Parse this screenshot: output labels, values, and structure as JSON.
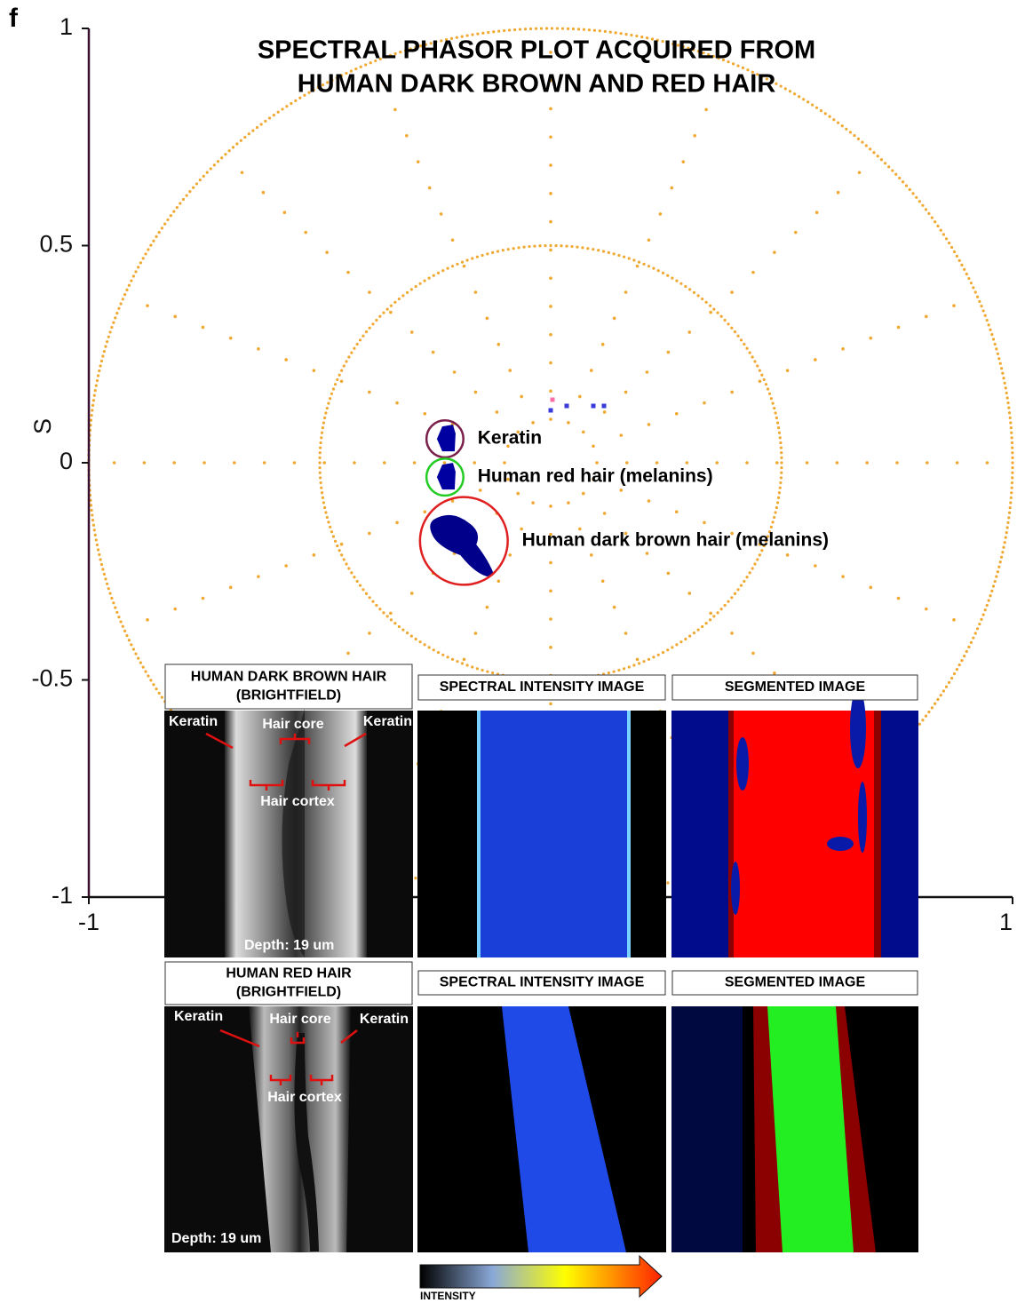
{
  "panel_label": "f",
  "chart_data": {
    "type": "phasor",
    "title": [
      "SPECTRAL PHASOR PLOT ACQUIRED FROM",
      "HUMAN DARK BROWN AND RED HAIR"
    ],
    "ylabel": "S",
    "xlim": [
      -1,
      1
    ],
    "ylim": [
      -1,
      1
    ],
    "xticks": [
      -1,
      1
    ],
    "yticks": [
      -1,
      -0.5,
      0,
      0.5,
      1
    ],
    "ref_circles": [
      0.5,
      1
    ],
    "spokes": 16,
    "grid_color": "#f0a830",
    "clusters": [
      {
        "label": "Keratin",
        "color": "#7a1f4a",
        "x": -0.229,
        "y": 0.055,
        "r": 0.04
      },
      {
        "label": "Human red hair (melanins)",
        "color": "#22cc22",
        "x": -0.229,
        "y": -0.033,
        "r": 0.04
      },
      {
        "label": "Human dark brown hair (melanins)",
        "color": "#e02020",
        "x": -0.188,
        "y": -0.18,
        "r": 0.095
      }
    ]
  },
  "images": {
    "rows": [
      {
        "headers": [
          [
            "HUMAN DARK BROWN HAIR",
            "(BRIGHTFIELD)"
          ],
          [
            "SPECTRAL INTENSITY IMAGE"
          ],
          [
            "SEGMENTED IMAGE"
          ]
        ],
        "annotations": [
          "Keratin",
          "Hair core",
          "Keratin",
          "Hair cortex",
          "Depth: 19 um"
        ]
      },
      {
        "headers": [
          [
            "HUMAN RED HAIR",
            "(BRIGHTFIELD)"
          ],
          [
            "SPECTRAL INTENSITY IMAGE"
          ],
          [
            "SEGMENTED IMAGE"
          ]
        ],
        "annotations": [
          "Keratin",
          "Hair core",
          "Keratin",
          "Hair cortex",
          "Depth: 19 um"
        ]
      }
    ]
  },
  "colorbar": {
    "label": "INTENSITY"
  }
}
